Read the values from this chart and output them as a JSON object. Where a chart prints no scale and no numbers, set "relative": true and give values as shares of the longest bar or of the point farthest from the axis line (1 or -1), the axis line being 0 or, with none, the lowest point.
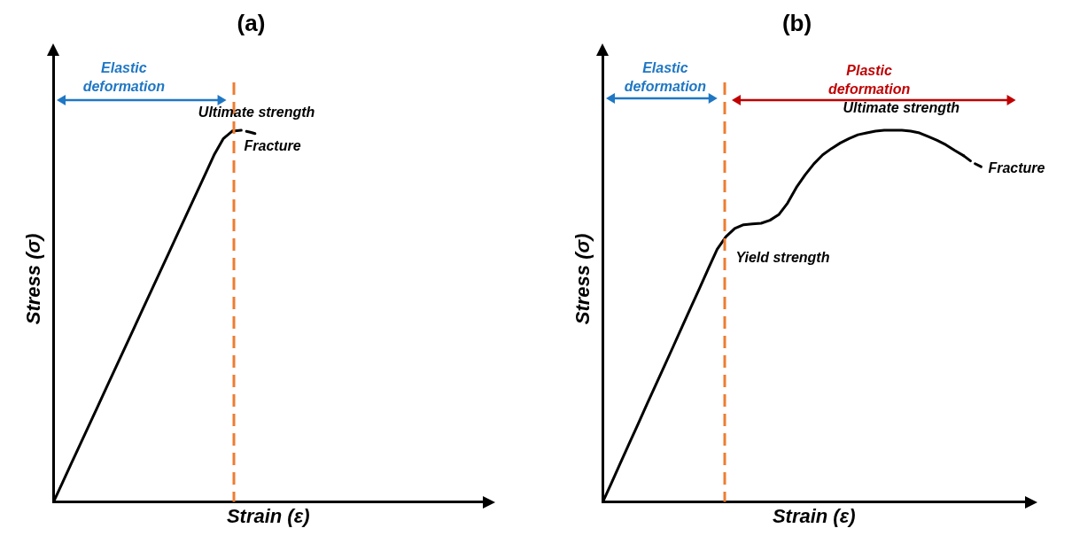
{
  "chart_data": [
    {
      "type": "line",
      "title": "(a)",
      "xlabel": "Strain (ε)",
      "ylabel": "Stress (σ)",
      "relative": true,
      "legend": false,
      "marker": "none",
      "categories": [
        null,
        null,
        null,
        null,
        null,
        null,
        null,
        null,
        null,
        null,
        null,
        null,
        null,
        null,
        null,
        null,
        null,
        null,
        null,
        null,
        null,
        null,
        null,
        null,
        null,
        null,
        null,
        null,
        null,
        null,
        null,
        null,
        null,
        null,
        null,
        null,
        null,
        null,
        null,
        null,
        null,
        null,
        null,
        null,
        null,
        null,
        null,
        null,
        null
      ],
      "series": [
        {
          "color": "#000000",
          "line_style": "solid",
          "values": [
            0,
            0.052,
            0.104,
            0.156,
            0.208,
            0.26,
            0.312,
            0.364,
            0.416,
            0.468,
            0.52,
            0.572,
            0.624,
            0.676,
            0.728,
            0.78,
            0.832,
            0.884,
            0.936,
            0.978,
            0.998,
            null,
            null,
            null,
            null,
            null,
            null,
            null,
            null,
            null,
            null,
            null,
            null,
            null,
            null,
            null,
            null,
            null,
            null,
            null,
            null,
            null,
            null,
            null,
            null,
            null,
            null,
            null,
            null
          ]
        },
        {
          "color": "#000000",
          "line_style": "dashed",
          "values": [
            null,
            null,
            null,
            null,
            null,
            null,
            null,
            null,
            null,
            null,
            null,
            null,
            null,
            null,
            null,
            null,
            null,
            null,
            null,
            null,
            0.998,
            1,
            0.995,
            0.988,
            null,
            null,
            null,
            null,
            null,
            null,
            null,
            null,
            null,
            null,
            null,
            null,
            null,
            null,
            null,
            null,
            null,
            null,
            null,
            null,
            null,
            null,
            null,
            null,
            null
          ]
        }
      ],
      "annotations": [
        "Elastic deformation",
        "Ultimate strength",
        "Fracture"
      ]
    },
    {
      "type": "line",
      "title": "(b)",
      "xlabel": "Strain (ε)",
      "ylabel": "Stress (σ)",
      "relative": true,
      "legend": false,
      "marker": "none",
      "categories": [
        null,
        null,
        null,
        null,
        null,
        null,
        null,
        null,
        null,
        null,
        null,
        null,
        null,
        null,
        null,
        null,
        null,
        null,
        null,
        null,
        null,
        null,
        null,
        null,
        null,
        null,
        null,
        null,
        null,
        null,
        null,
        null,
        null,
        null,
        null,
        null,
        null,
        null,
        null,
        null,
        null,
        null,
        null,
        null,
        null,
        null,
        null,
        null,
        null
      ],
      "series": [
        {
          "color": "#000000",
          "line_style": "solid",
          "values": [
            0,
            0.052,
            0.105,
            0.157,
            0.209,
            0.262,
            0.314,
            0.366,
            0.418,
            0.471,
            0.523,
            0.575,
            0.628,
            0.68,
            0.714,
            0.736,
            0.746,
            0.748,
            0.75,
            0.758,
            0.773,
            0.804,
            0.846,
            0.88,
            0.91,
            0.934,
            0.951,
            0.966,
            0.978,
            0.988,
            0.993,
            0.998,
            1,
            1,
            1,
            0.998,
            0.993,
            0.983,
            0.973,
            0.961,
            0.946,
            0.932,
            null,
            null,
            null,
            null,
            null,
            null,
            null
          ]
        },
        {
          "color": "#000000",
          "line_style": "dashed",
          "values": [
            null,
            null,
            null,
            null,
            null,
            null,
            null,
            null,
            null,
            null,
            null,
            null,
            null,
            null,
            null,
            null,
            null,
            null,
            null,
            null,
            null,
            null,
            null,
            null,
            null,
            null,
            null,
            null,
            null,
            null,
            null,
            null,
            null,
            null,
            null,
            null,
            null,
            null,
            null,
            null,
            null,
            0.932,
            0.914,
            0.902,
            null,
            null,
            null,
            null,
            null
          ]
        }
      ],
      "annotations": [
        "Elastic deformation",
        "Plastic deformation",
        "Ultimate strength",
        "Fracture",
        "Yield strength"
      ]
    }
  ]
}
